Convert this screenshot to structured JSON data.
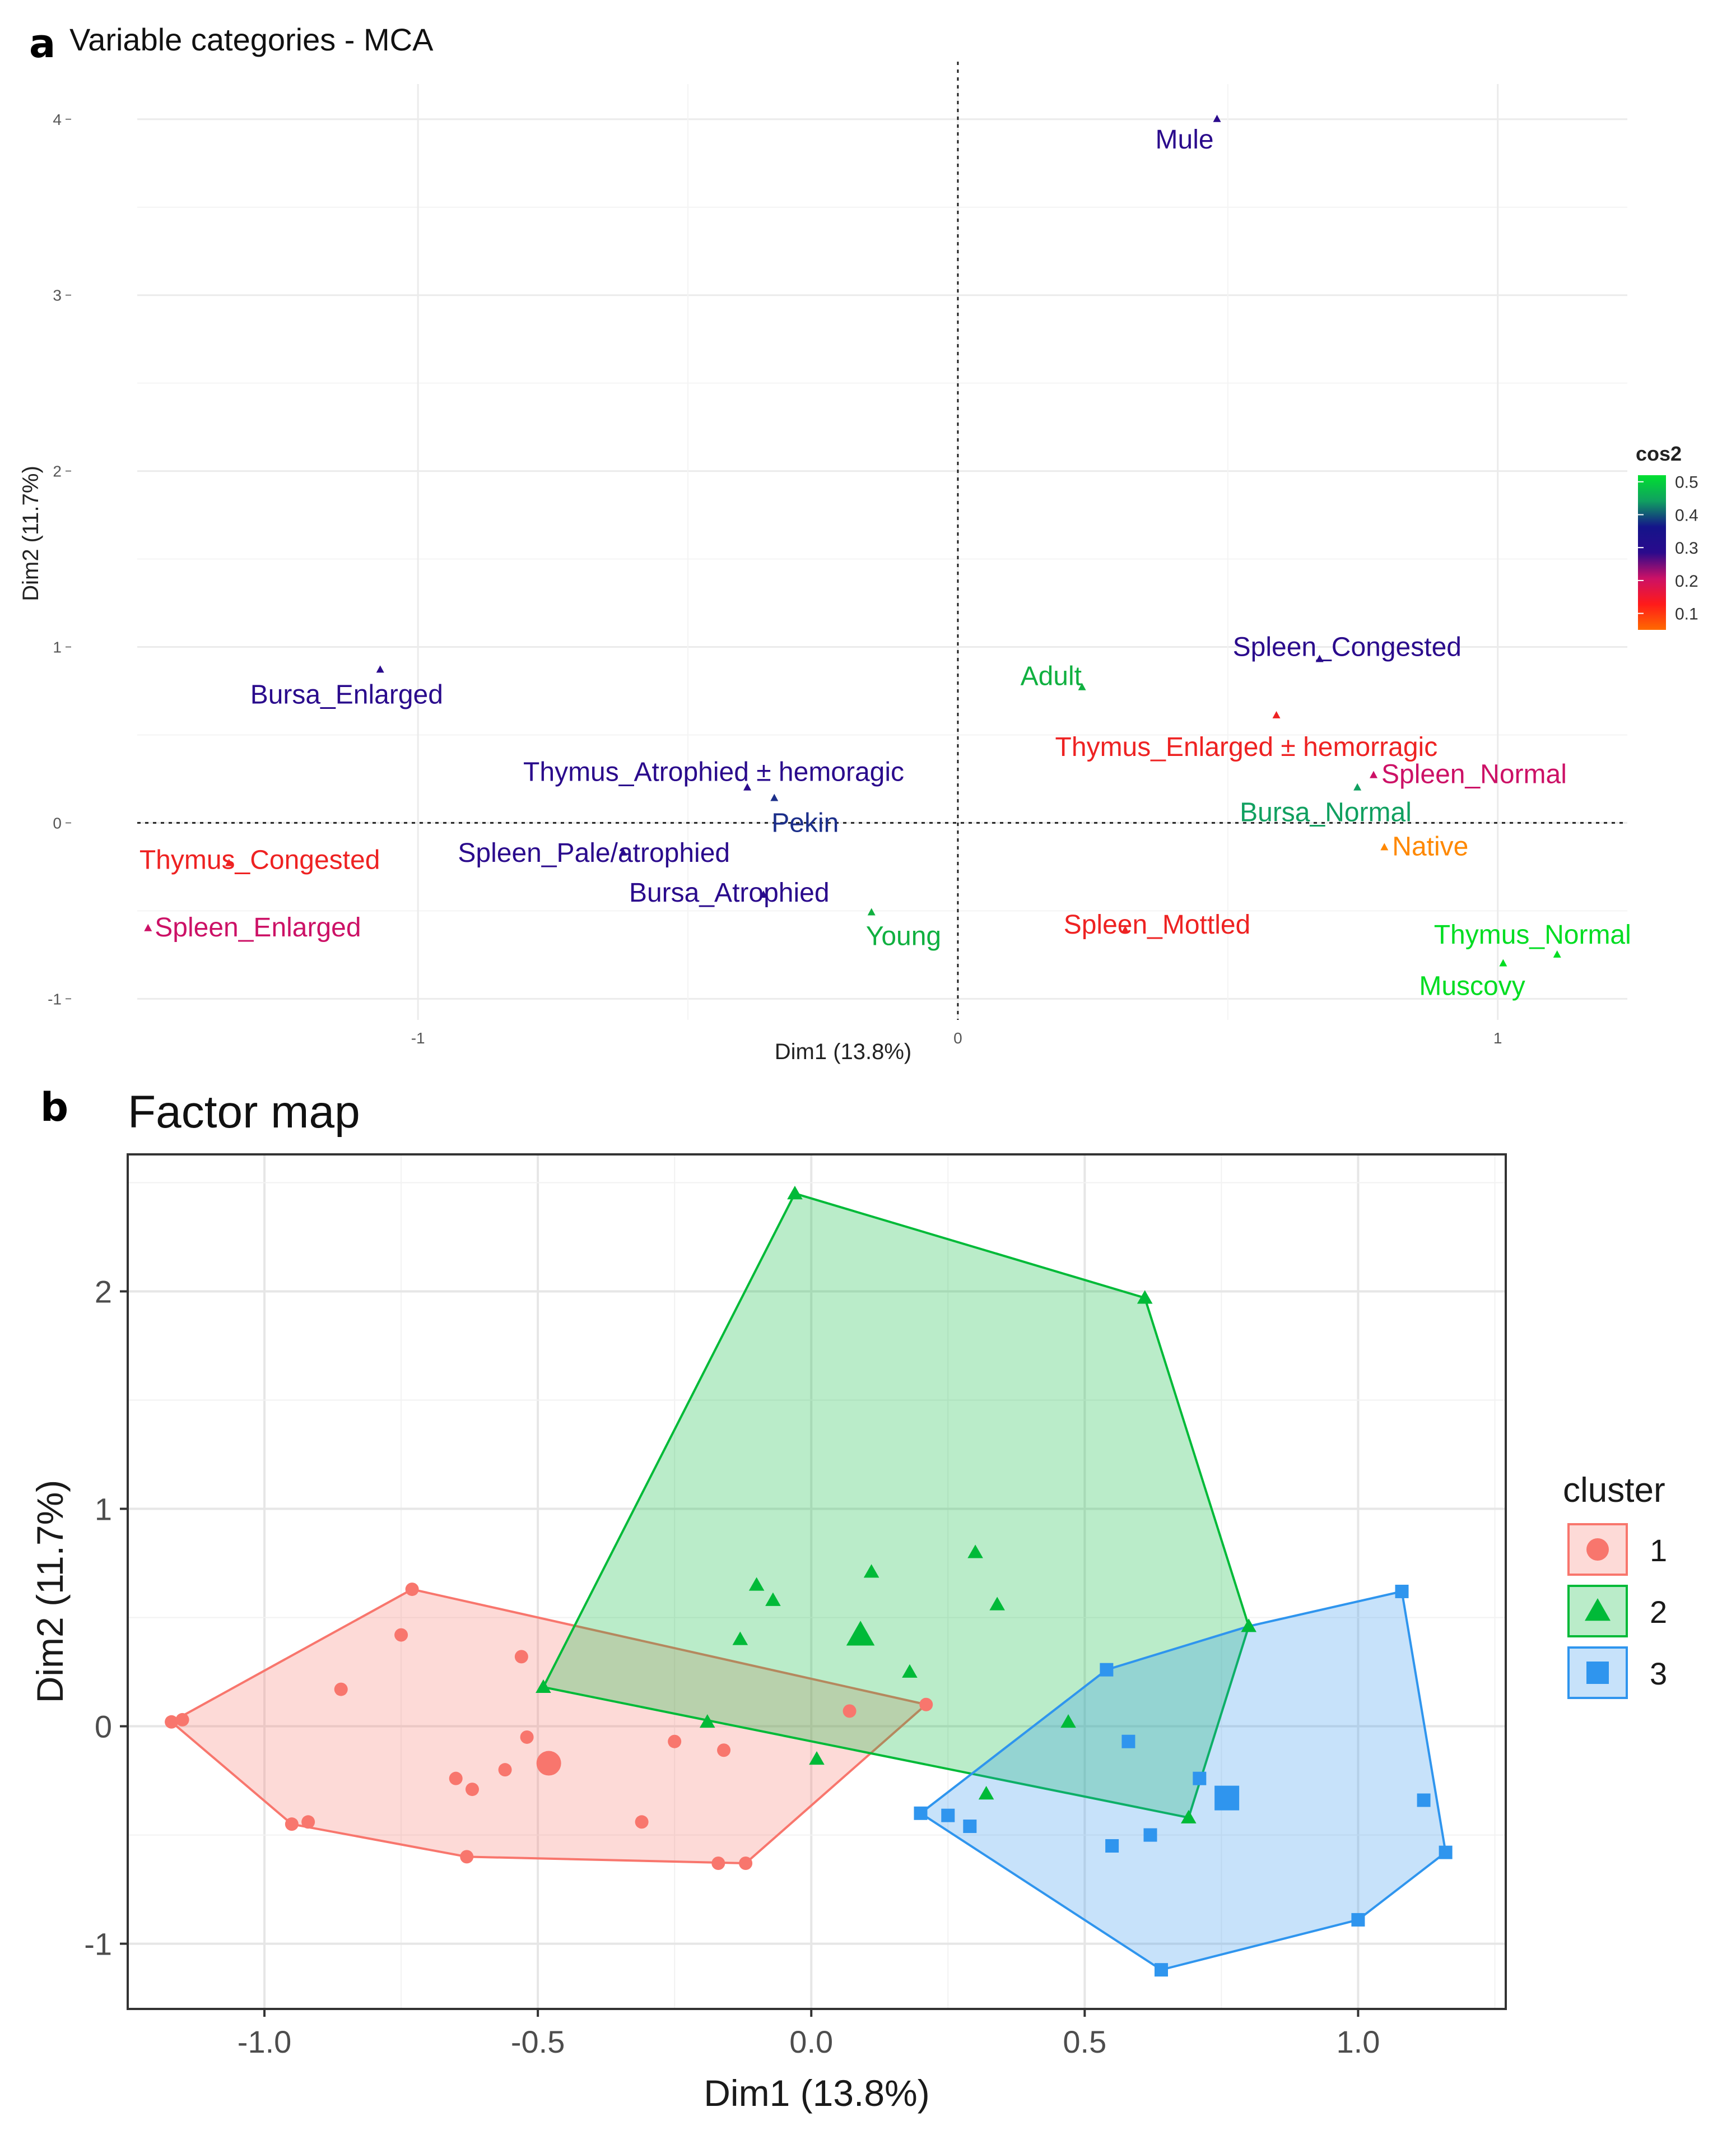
{
  "figure": {
    "label_a": "a",
    "label_b": "b"
  },
  "panel_a_legend": {
    "title": "cos2",
    "ticks": [
      {
        "value": 0.5,
        "label": "0.5"
      },
      {
        "value": 0.4,
        "label": "0.4"
      },
      {
        "value": 0.3,
        "label": "0.3"
      },
      {
        "value": 0.2,
        "label": "0.2"
      },
      {
        "value": 0.1,
        "label": "0.1"
      }
    ],
    "range": [
      0.05,
      0.52
    ],
    "gradient_colors": [
      "#ff6a00",
      "#ff1a1a",
      "#cc1166",
      "#2a0a8c",
      "#14148a",
      "#10a060",
      "#00e030"
    ]
  },
  "panel_b_legend": {
    "title": "cluster",
    "items": [
      {
        "label": "1",
        "shape": "circle",
        "color": "#f8766d"
      },
      {
        "label": "2",
        "shape": "triangle",
        "color": "#00ba38"
      },
      {
        "label": "3",
        "shape": "square",
        "color": "#2f95ee"
      }
    ]
  },
  "chart_data": [
    {
      "type": "scatter",
      "title": "Variable categories - MCA",
      "xlabel": "Dim1 (13.8%)",
      "ylabel": "Dim2 (11.7%)",
      "xlim": [
        -1.52,
        1.24
      ],
      "ylim": [
        -1.12,
        4.2
      ],
      "xticks": [
        {
          "value": -1,
          "label": "-1"
        },
        {
          "value": 0,
          "label": "0"
        },
        {
          "value": 1,
          "label": "1"
        }
      ],
      "yticks": [
        {
          "value": -1,
          "label": "-1"
        },
        {
          "value": 0,
          "label": "0"
        },
        {
          "value": 1,
          "label": "1"
        },
        {
          "value": 2,
          "label": "2"
        },
        {
          "value": 3,
          "label": "3"
        },
        {
          "value": 4,
          "label": "4"
        }
      ],
      "reference_lines": {
        "x": 0,
        "y": 0,
        "style": "dotted"
      },
      "grid": true,
      "legend_position": "right",
      "points": [
        {
          "name": "Mule",
          "x": 0.48,
          "y": 4.0,
          "cos2": 0.3,
          "color": "#2a0a8c"
        },
        {
          "name": "Spleen_Congested",
          "x": 0.67,
          "y": 0.93,
          "cos2": 0.32,
          "color": "#2a0a8c"
        },
        {
          "name": "Adult",
          "x": 0.23,
          "y": 0.77,
          "cos2": 0.46,
          "color": "#10b040"
        },
        {
          "name": "Thymus_Enlarged ± hemorragic",
          "x": 0.59,
          "y": 0.61,
          "cos2": 0.15,
          "color": "#ee2222"
        },
        {
          "name": "Spleen_Normal",
          "x": 0.77,
          "y": 0.27,
          "cos2": 0.2,
          "color": "#cc1166"
        },
        {
          "name": "Bursa_Normal",
          "x": 0.74,
          "y": 0.2,
          "cos2": 0.42,
          "color": "#10a060"
        },
        {
          "name": "Native",
          "x": 0.79,
          "y": -0.14,
          "cos2": 0.08,
          "color": "#ff8800"
        },
        {
          "name": "Spleen_Mottled",
          "x": 0.31,
          "y": -0.61,
          "cos2": 0.15,
          "color": "#ee2222"
        },
        {
          "name": "Thymus_Normal",
          "x": 1.11,
          "y": -0.75,
          "cos2": 0.52,
          "color": "#00dd22"
        },
        {
          "name": "Muscovy",
          "x": 1.01,
          "y": -0.8,
          "cos2": 0.52,
          "color": "#00dd22"
        },
        {
          "name": "Young",
          "x": -0.16,
          "y": -0.51,
          "cos2": 0.46,
          "color": "#10b040"
        },
        {
          "name": "Pekin",
          "x": -0.34,
          "y": 0.14,
          "cos2": 0.34,
          "color": "#1c2f8a"
        },
        {
          "name": "Thymus_Atrophied ± hemoragic",
          "x": -0.39,
          "y": 0.2,
          "cos2": 0.3,
          "color": "#2a0a8c"
        },
        {
          "name": "Spleen_Pale/atrophied",
          "x": -0.62,
          "y": -0.17,
          "cos2": 0.3,
          "color": "#2a0a8c"
        },
        {
          "name": "Bursa_Atrophied",
          "x": -0.36,
          "y": -0.41,
          "cos2": 0.3,
          "color": "#2a0a8c"
        },
        {
          "name": "Bursa_Enlarged",
          "x": -1.07,
          "y": 0.87,
          "cos2": 0.3,
          "color": "#2a0a8c"
        },
        {
          "name": "Thymus_Congested",
          "x": -1.35,
          "y": -0.23,
          "cos2": 0.15,
          "color": "#ee2222"
        },
        {
          "name": "Spleen_Enlarged",
          "x": -1.5,
          "y": -0.6,
          "cos2": 0.2,
          "color": "#cc1166"
        }
      ]
    },
    {
      "type": "scatter",
      "title": "Factor map",
      "xlabel": "Dim1 (13.8%)",
      "ylabel": "Dim2 (11.7%)",
      "xlim": [
        -1.25,
        1.27
      ],
      "ylim": [
        -1.3,
        2.63
      ],
      "xticks": [
        {
          "value": -1.0,
          "label": "-1.0"
        },
        {
          "value": -0.5,
          "label": "-0.5"
        },
        {
          "value": 0.0,
          "label": "0.0"
        },
        {
          "value": 0.5,
          "label": "0.5"
        },
        {
          "value": 1.0,
          "label": "1.0"
        }
      ],
      "yticks": [
        {
          "value": -1,
          "label": "-1"
        },
        {
          "value": 0,
          "label": "0"
        },
        {
          "value": 1,
          "label": "1"
        },
        {
          "value": 2,
          "label": "2"
        }
      ],
      "grid": true,
      "legend_position": "right",
      "series": [
        {
          "name": "1",
          "shape": "circle",
          "color": "#f8766d",
          "hull": [
            [
              -1.17,
              0.02
            ],
            [
              -0.73,
              0.63
            ],
            [
              0.21,
              0.1
            ],
            [
              -0.12,
              -0.63
            ],
            [
              -0.63,
              -0.6
            ],
            [
              -0.95,
              -0.45
            ]
          ],
          "points": [
            [
              -1.17,
              0.02
            ],
            [
              -1.15,
              0.03
            ],
            [
              -0.73,
              0.63
            ],
            [
              -0.75,
              0.42
            ],
            [
              -0.86,
              0.17
            ],
            [
              -0.53,
              0.32
            ],
            [
              -0.52,
              -0.05
            ],
            [
              -0.65,
              -0.24
            ],
            [
              -0.62,
              -0.29
            ],
            [
              -0.56,
              -0.2
            ],
            [
              -0.31,
              -0.44
            ],
            [
              -0.25,
              -0.07
            ],
            [
              -0.16,
              -0.11
            ],
            [
              -0.17,
              -0.63
            ],
            [
              -0.12,
              -0.63
            ],
            [
              -0.63,
              -0.6
            ],
            [
              -0.95,
              -0.45
            ],
            [
              -0.92,
              -0.44
            ],
            [
              0.07,
              0.07
            ],
            [
              0.21,
              0.1
            ]
          ],
          "centroid": [
            -0.48,
            -0.17
          ]
        },
        {
          "name": "2",
          "shape": "triangle",
          "color": "#00ba38",
          "hull": [
            [
              -0.03,
              2.45
            ],
            [
              0.61,
              1.97
            ],
            [
              0.8,
              0.46
            ],
            [
              0.69,
              -0.42
            ],
            [
              -0.49,
              0.18
            ]
          ],
          "points": [
            [
              -0.03,
              2.45
            ],
            [
              0.61,
              1.97
            ],
            [
              0.8,
              0.46
            ],
            [
              0.69,
              -0.42
            ],
            [
              -0.49,
              0.18
            ],
            [
              -0.1,
              0.65
            ],
            [
              -0.07,
              0.58
            ],
            [
              0.11,
              0.71
            ],
            [
              0.3,
              0.8
            ],
            [
              0.34,
              0.56
            ],
            [
              -0.13,
              0.4
            ],
            [
              0.18,
              0.25
            ],
            [
              -0.19,
              0.02
            ],
            [
              0.01,
              -0.15
            ],
            [
              0.32,
              -0.31
            ],
            [
              0.47,
              0.02
            ]
          ],
          "centroid": [
            0.09,
            0.42
          ]
        },
        {
          "name": "3",
          "shape": "square",
          "color": "#2f95ee",
          "hull": [
            [
              1.08,
              0.62
            ],
            [
              1.16,
              -0.58
            ],
            [
              1.0,
              -0.89
            ],
            [
              0.64,
              -1.12
            ],
            [
              0.2,
              -0.4
            ],
            [
              0.54,
              0.26
            ],
            [
              0.8,
              0.46
            ]
          ],
          "points": [
            [
              1.08,
              0.62
            ],
            [
              1.16,
              -0.58
            ],
            [
              1.0,
              -0.89
            ],
            [
              0.64,
              -1.12
            ],
            [
              0.2,
              -0.4
            ],
            [
              0.54,
              0.26
            ],
            [
              0.58,
              -0.07
            ],
            [
              0.71,
              -0.24
            ],
            [
              0.25,
              -0.41
            ],
            [
              0.29,
              -0.46
            ],
            [
              0.55,
              -0.55
            ],
            [
              0.62,
              -0.5
            ],
            [
              1.12,
              -0.34
            ]
          ],
          "centroid": [
            0.76,
            -0.33
          ]
        }
      ]
    }
  ]
}
